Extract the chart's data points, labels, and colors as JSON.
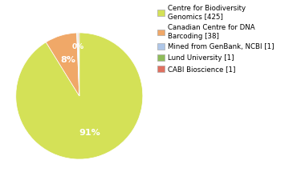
{
  "labels": [
    "Centre for Biodiversity\nGenomics [425]",
    "Canadian Centre for DNA\nBarcoding [38]",
    "Mined from GenBank, NCBI [1]",
    "Lund University [1]",
    "CABI Bioscience [1]"
  ],
  "values": [
    425,
    38,
    1,
    1,
    1
  ],
  "colors": [
    "#d4e157",
    "#f0a868",
    "#aec6e8",
    "#8fbc5a",
    "#e07060"
  ],
  "pct_labels": [
    "91%",
    "8%",
    "",
    "0%",
    ""
  ],
  "pct_show": [
    true,
    true,
    false,
    true,
    false
  ],
  "background_color": "#ffffff"
}
